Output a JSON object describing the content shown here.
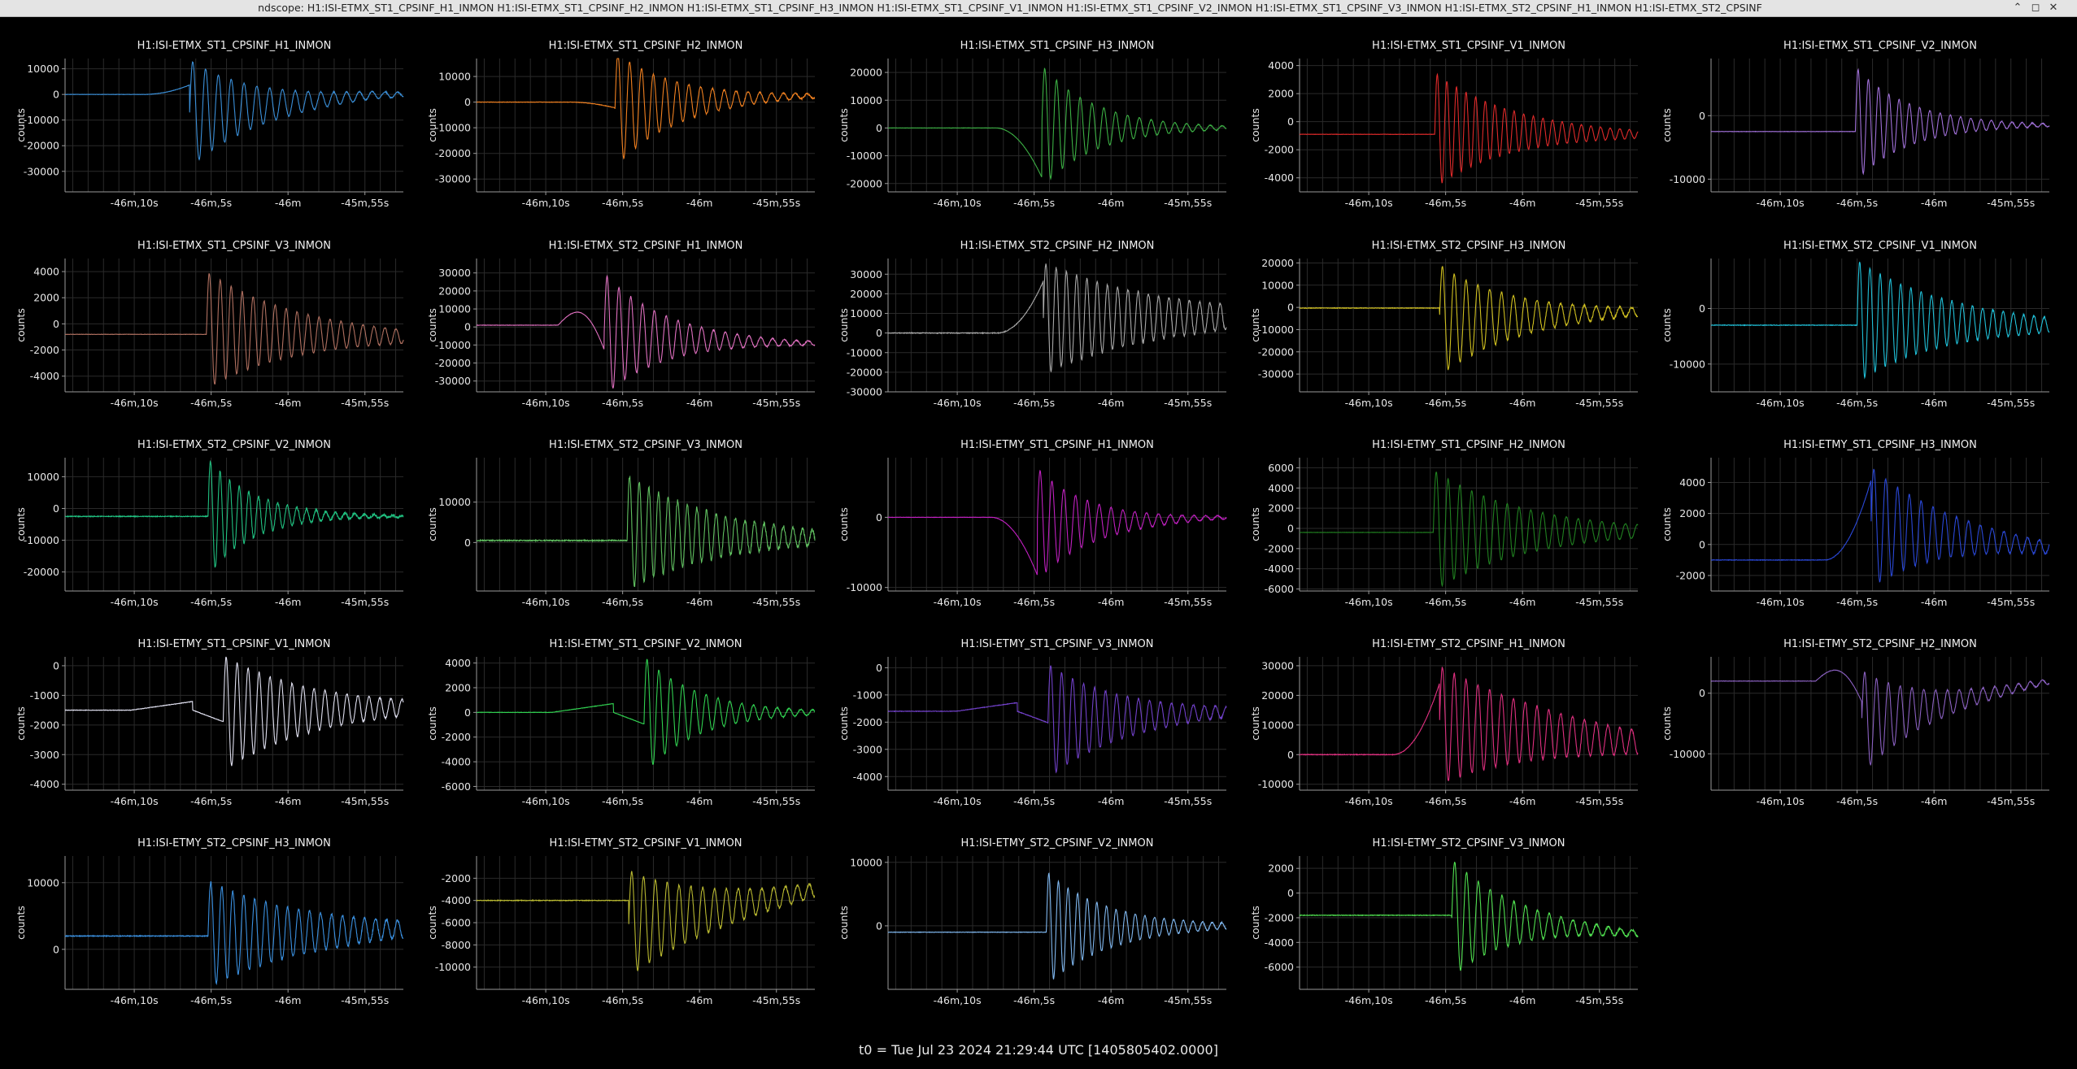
{
  "window": {
    "title": "ndscope: H1:ISI-ETMX_ST1_CPSINF_H1_INMON H1:ISI-ETMX_ST1_CPSINF_H2_INMON H1:ISI-ETMX_ST1_CPSINF_H3_INMON H1:ISI-ETMX_ST1_CPSINF_V1_INMON H1:ISI-ETMX_ST1_CPSINF_V2_INMON H1:ISI-ETMX_ST1_CPSINF_V3_INMON H1:ISI-ETMX_ST2_CPSINF_H1_INMON H1:ISI-ETMX_ST2_CPSINF",
    "controls": {
      "minimize": "⌃",
      "maximize": "◻",
      "close": "✕"
    }
  },
  "x_axis": {
    "tick_labels": [
      "-46m,10s",
      "-46m,5s",
      "-46m",
      "-45m,55s"
    ],
    "tick_values": [
      -2770,
      -2765,
      -2760,
      -2755
    ],
    "range": [
      -2774.5,
      -2752.5
    ]
  },
  "y_label": "counts",
  "footer": "t0 = Tue Jul 23 2024 21:29:44 UTC [1405805402.0000]",
  "chart_data": [
    {
      "type": "line",
      "title": "H1:ISI-ETMX_ST1_CPSINF_H1_INMON",
      "color": "#3a8fd8",
      "ylim": [
        -38000,
        14000
      ],
      "yticks": [
        10000,
        0,
        -10000,
        -20000,
        -30000
      ],
      "pre": 0,
      "shape": "ramp_up",
      "pk_up": 10000,
      "pk_dn": -32000,
      "t_evt": -2766.4,
      "freq": 1.2,
      "decay": 4.5,
      "tail": -6000,
      "end": 0,
      "noise": 400
    },
    {
      "type": "line",
      "title": "H1:ISI-ETMX_ST1_CPSINF_H2_INMON",
      "color": "#f08020",
      "ylim": [
        -35000,
        17000
      ],
      "yticks": [
        10000,
        0,
        -10000,
        -20000,
        -30000
      ],
      "pre": 0,
      "shape": "dip",
      "pk_up": 13000,
      "pk_dn": -32000,
      "t_evt": -2765.5,
      "freq": 1.3,
      "decay": 4,
      "tail": 0,
      "end": 2500,
      "noise": 500
    },
    {
      "type": "line",
      "title": "H1:ISI-ETMX_ST1_CPSINF_H3_INMON",
      "color": "#3cb044",
      "ylim": [
        -23000,
        25000
      ],
      "yticks": [
        20000,
        10000,
        0,
        -10000,
        -20000
      ],
      "pre": 0,
      "shape": "ramp_down",
      "pk_up": 24000,
      "pk_dn": -20000,
      "t_evt": -2764.5,
      "freq": 1.3,
      "decay": 3.5,
      "tail": 0,
      "end": 0,
      "noise": 300
    },
    {
      "type": "line",
      "title": "H1:ISI-ETMX_ST1_CPSINF_V1_INMON",
      "color": "#e02a2a",
      "ylim": [
        -5000,
        4500
      ],
      "yticks": [
        4000,
        2000,
        0,
        -2000,
        -4000
      ],
      "pre": -900,
      "shape": "flat",
      "pk_up": 3500,
      "pk_dn": -4700,
      "t_evt": -2765.7,
      "freq": 1.6,
      "decay": 5,
      "tail": -600,
      "end": -900,
      "noise": 60
    },
    {
      "type": "line",
      "title": "H1:ISI-ETMX_ST1_CPSINF_V2_INMON",
      "color": "#a070d8",
      "ylim": [
        -12000,
        9000
      ],
      "yticks": [
        0,
        -10000
      ],
      "pre": -2500,
      "shape": "flat",
      "pk_up": 8000,
      "pk_dn": -10000,
      "t_evt": -2765.1,
      "freq": 1.5,
      "decay": 3.5,
      "tail": -1500,
      "end": -1500,
      "noise": 150
    },
    {
      "type": "line",
      "title": "H1:ISI-ETMX_ST1_CPSINF_V3_INMON",
      "color": "#b07060",
      "ylim": [
        -5200,
        5000
      ],
      "yticks": [
        4000,
        2000,
        0,
        -2000,
        -4000
      ],
      "pre": -800,
      "shape": "flat",
      "pk_up": 4500,
      "pk_dn": -4500,
      "t_evt": -2765.3,
      "freq": 1.4,
      "decay": 6,
      "tail": -700,
      "end": -1000,
      "noise": 80
    },
    {
      "type": "line",
      "title": "H1:ISI-ETMX_ST2_CPSINF_H1_INMON",
      "color": "#e070c0",
      "ylim": [
        -36000,
        38000
      ],
      "yticks": [
        30000,
        20000,
        10000,
        0,
        -10000,
        -20000,
        -30000
      ],
      "pre": 1000,
      "shape": "hump_dip",
      "pk_up": 34000,
      "pk_dn": -34000,
      "t_evt": -2766.2,
      "freq": 1.3,
      "decay": 4,
      "tail": -6000,
      "end": -9000,
      "noise": 600
    },
    {
      "type": "line",
      "title": "H1:ISI-ETMX_ST2_CPSINF_H2_INMON",
      "color": "#a8a8a8",
      "ylim": [
        -30000,
        38000
      ],
      "yticks": [
        30000,
        20000,
        10000,
        0,
        -10000,
        -20000,
        -30000
      ],
      "pre": 0,
      "shape": "ramp_up",
      "pk_up": 35000,
      "pk_dn": -22000,
      "t_evt": -2764.4,
      "freq": 1.5,
      "decay": 8,
      "tail": 8000,
      "end": 8000,
      "noise": 1200
    },
    {
      "type": "line",
      "title": "H1:ISI-ETMX_ST2_CPSINF_H3_INMON",
      "color": "#d0c020",
      "ylim": [
        -38000,
        22000
      ],
      "yticks": [
        20000,
        10000,
        0,
        -10000,
        -20000,
        -30000
      ],
      "pre": -300,
      "shape": "flat",
      "pk_up": 17000,
      "pk_dn": -33000,
      "t_evt": -2765.4,
      "freq": 1.3,
      "decay": 5,
      "tail": -5000,
      "end": -2000,
      "noise": 800
    },
    {
      "type": "line",
      "title": "H1:ISI-ETMX_ST2_CPSINF_V1_INMON",
      "color": "#20c0d8",
      "ylim": [
        -15000,
        9000
      ],
      "yticks": [
        0,
        -10000
      ],
      "pre": -3000,
      "shape": "flat",
      "pk_up": 8000,
      "pk_dn": -14000,
      "t_evt": -2765.0,
      "freq": 1.5,
      "decay": 6,
      "tail": -2000,
      "end": -3000,
      "noise": 300
    },
    {
      "type": "line",
      "title": "H1:ISI-ETMX_ST2_CPSINF_V2_INMON",
      "color": "#20c080",
      "ylim": [
        -26000,
        16000
      ],
      "yticks": [
        10000,
        0,
        -10000,
        -20000
      ],
      "pre": -2500,
      "shape": "flat",
      "pk_up": 14000,
      "pk_dn": -23000,
      "t_evt": -2765.2,
      "freq": 1.6,
      "decay": 3,
      "tail": -2000,
      "end": -2500,
      "noise": 800
    },
    {
      "type": "line",
      "title": "H1:ISI-ETMX_ST2_CPSINF_V3_INMON",
      "color": "#60c060",
      "ylim": [
        -12000,
        21000
      ],
      "yticks": [
        10000,
        0
      ],
      "pre": 500,
      "shape": "flat",
      "pk_up": 19000,
      "pk_dn": -10000,
      "t_evt": -2764.7,
      "freq": 1.6,
      "decay": 6,
      "tail": 1500,
      "end": 1000,
      "noise": 900
    },
    {
      "type": "line",
      "title": "H1:ISI-ETMY_ST1_CPSINF_H1_INMON",
      "color": "#c020c0",
      "ylim": [
        -10500,
        8500
      ],
      "yticks": [
        0,
        -10000
      ],
      "pre": 0,
      "shape": "ramp_down",
      "pk_up": 7000,
      "pk_dn": -9000,
      "t_evt": -2764.8,
      "freq": 1.3,
      "decay": 3.5,
      "tail": -1000,
      "end": 0,
      "noise": 150
    },
    {
      "type": "line",
      "title": "H1:ISI-ETMY_ST1_CPSINF_H2_INMON",
      "color": "#208020",
      "ylim": [
        -6200,
        7000
      ],
      "yticks": [
        6000,
        4000,
        2000,
        0,
        -2000,
        -4000,
        -6000
      ],
      "pre": -400,
      "shape": "flat",
      "pk_up": 6000,
      "pk_dn": -6000,
      "t_evt": -2765.8,
      "freq": 1.3,
      "decay": 6,
      "tail": -300,
      "end": -300,
      "noise": 80
    },
    {
      "type": "line",
      "title": "H1:ISI-ETMY_ST1_CPSINF_H3_INMON",
      "color": "#2a48d8",
      "ylim": [
        -3000,
        5600
      ],
      "yticks": [
        4000,
        2000,
        0,
        -2000
      ],
      "pre": -1000,
      "shape": "ramp_up",
      "pk_up": 5300,
      "pk_dn": -2500,
      "t_evt": -2764.1,
      "freq": 1.3,
      "decay": 5,
      "tail": 1000,
      "end": -300,
      "noise": 100
    },
    {
      "type": "line",
      "title": "H1:ISI-ETMY_ST1_CPSINF_V1_INMON",
      "color": "#e0e0f0",
      "ylim": [
        -4200,
        300
      ],
      "yticks": [
        0,
        -1000,
        -2000,
        -3000,
        -4000
      ],
      "pre": -1500,
      "shape": "step",
      "pk_up": 100,
      "pk_dn": -3800,
      "t_evt": -2764.2,
      "freq": 1.4,
      "decay": 6,
      "tail": -1500,
      "end": -1400,
      "noise": 50
    },
    {
      "type": "line",
      "title": "H1:ISI-ETMY_ST1_CPSINF_V2_INMON",
      "color": "#30d050",
      "ylim": [
        -6300,
        4500
      ],
      "yticks": [
        4000,
        2000,
        0,
        -2000,
        -4000,
        -6000
      ],
      "pre": 0,
      "shape": "step",
      "pk_up": 4000,
      "pk_dn": -5500,
      "t_evt": -2763.6,
      "freq": 1.3,
      "decay": 3.5,
      "tail": 0,
      "end": 0,
      "noise": 100
    },
    {
      "type": "line",
      "title": "H1:ISI-ETMY_ST1_CPSINF_V3_INMON",
      "color": "#7040c8",
      "ylim": [
        -4500,
        400
      ],
      "yticks": [
        0,
        -1000,
        -2000,
        -3000,
        -4000
      ],
      "pre": -1600,
      "shape": "step",
      "pk_up": 0,
      "pk_dn": -4200,
      "t_evt": -2764.1,
      "freq": 1.4,
      "decay": 5,
      "tail": -1900,
      "end": -1600,
      "noise": 60
    },
    {
      "type": "line",
      "title": "H1:ISI-ETMY_ST2_CPSINF_H1_INMON",
      "color": "#e03080",
      "ylim": [
        -12000,
        33000
      ],
      "yticks": [
        30000,
        20000,
        10000,
        0,
        -10000
      ],
      "pre": 0,
      "shape": "ramp_up",
      "pk_up": 30000,
      "pk_dn": -10000,
      "t_evt": -2765.4,
      "freq": 1.3,
      "decay": 8,
      "tail": 10000,
      "end": 4000,
      "noise": 700
    },
    {
      "type": "line",
      "title": "H1:ISI-ETMY_ST2_CPSINF_H2_INMON",
      "color": "#8a60c0",
      "ylim": [
        -16000,
        6000
      ],
      "yticks": [
        0,
        -10000
      ],
      "pre": 2000,
      "shape": "hump_dip",
      "pk_up": 2000,
      "pk_dn": -15000,
      "t_evt": -2764.7,
      "freq": 1.3,
      "decay": 4,
      "tail": -4000,
      "end": 2000,
      "noise": 200
    },
    {
      "type": "line",
      "title": "H1:ISI-ETMY_ST2_CPSINF_H3_INMON",
      "color": "#3a90e0",
      "ylim": [
        -6000,
        14000
      ],
      "yticks": [
        10000,
        0
      ],
      "pre": 2000,
      "shape": "flat",
      "pk_up": 11000,
      "pk_dn": -5000,
      "t_evt": -2765.2,
      "freq": 1.4,
      "decay": 7,
      "tail": 2000,
      "end": 3000,
      "noise": 400
    },
    {
      "type": "line",
      "title": "H1:ISI-ETMY_ST2_CPSINF_V1_INMON",
      "color": "#b8b830",
      "ylim": [
        -12000,
        0
      ],
      "yticks": [
        -2000,
        -4000,
        -6000,
        -8000,
        -10000
      ],
      "pre": -4000,
      "shape": "flat",
      "pk_up": -1500,
      "pk_dn": -11000,
      "t_evt": -2764.6,
      "freq": 1.3,
      "decay": 6,
      "tail": -6000,
      "end": -3000,
      "noise": 200
    },
    {
      "type": "line",
      "title": "H1:ISI-ETMY_ST2_CPSINF_V2_INMON",
      "color": "#80b8f0",
      "ylim": [
        -10000,
        11000
      ],
      "yticks": [
        10000,
        0
      ],
      "pre": -1000,
      "shape": "flat",
      "pk_up": 9000,
      "pk_dn": -9000,
      "t_evt": -2764.2,
      "freq": 1.6,
      "decay": 4,
      "tail": -500,
      "end": 0,
      "noise": 200
    },
    {
      "type": "line",
      "title": "H1:ISI-ETMY_ST2_CPSINF_V3_INMON",
      "color": "#50e050",
      "ylim": [
        -7800,
        3000
      ],
      "yticks": [
        2000,
        0,
        -2000,
        -4000,
        -6000
      ],
      "pre": -1800,
      "shape": "flat",
      "pk_up": 2600,
      "pk_dn": -7000,
      "t_evt": -2764.6,
      "freq": 1.3,
      "decay": 4,
      "tail": -2000,
      "end": -3300,
      "noise": 150
    }
  ]
}
